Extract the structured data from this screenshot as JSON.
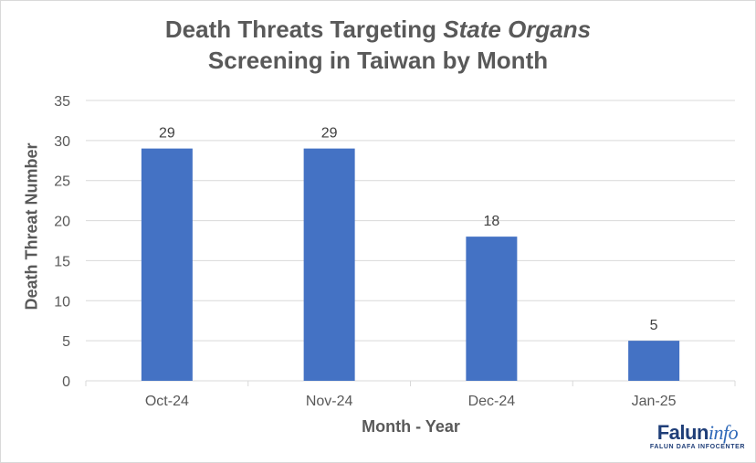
{
  "chart_data": {
    "type": "bar",
    "title_parts": [
      "Death Threats Targeting ",
      "State Organs",
      "Screening in Taiwan by Month"
    ],
    "xlabel": "Month - Year",
    "ylabel": "Death Threat Number",
    "categories": [
      "Oct-24",
      "Nov-24",
      "Dec-24",
      "Jan-25"
    ],
    "values": [
      29,
      29,
      18,
      5
    ],
    "data_labels": [
      "29",
      "29",
      "18",
      "5"
    ],
    "ylim": [
      0,
      35
    ],
    "yticks": [
      0,
      5,
      10,
      15,
      20,
      25,
      30,
      35
    ],
    "grid": true,
    "bar_color": "#4472c4",
    "grid_color": "#d9d9d9",
    "text_color": "#595959"
  },
  "logo": {
    "brand": "Falun",
    "brand_italic": "info",
    "tagline": "FALUN DAFA INFOCENTER"
  }
}
